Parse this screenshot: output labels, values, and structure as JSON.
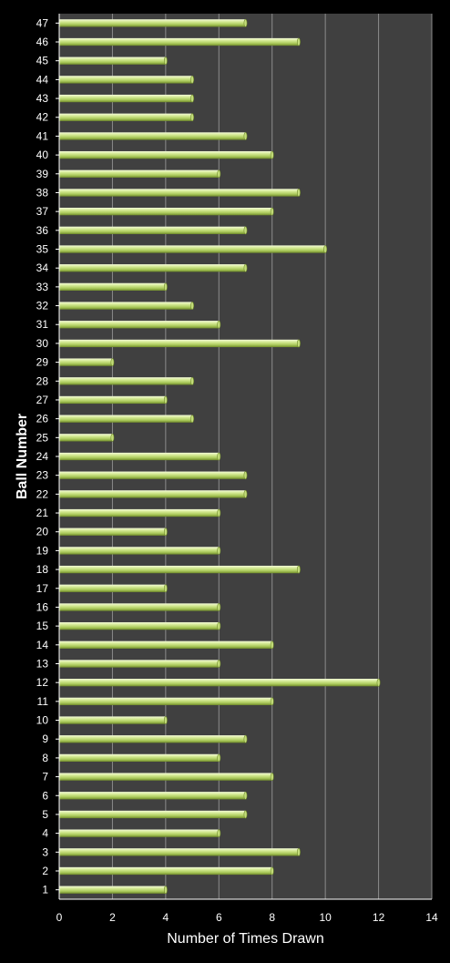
{
  "colors": {
    "background": "#000000",
    "plot_area": "#404040",
    "gridline": "#8c8c8c",
    "bar_fill": "#c3dc7a",
    "bar_highlight": "#e8f5b8",
    "bar_shadow": "#6f8a2a",
    "text": "#ffffff"
  },
  "chart_data": {
    "type": "bar",
    "orientation": "horizontal",
    "xlabel": "Number of Times Drawn",
    "ylabel": "Ball Number",
    "xlim": [
      0,
      14
    ],
    "x_ticks": [
      "0",
      "2",
      "4",
      "6",
      "8",
      "10",
      "12",
      "14"
    ],
    "grid": "vertical",
    "legend": "none",
    "categories": [
      "1",
      "2",
      "3",
      "4",
      "5",
      "6",
      "7",
      "8",
      "9",
      "10",
      "11",
      "12",
      "13",
      "14",
      "15",
      "16",
      "17",
      "18",
      "19",
      "20",
      "21",
      "22",
      "23",
      "24",
      "25",
      "26",
      "27",
      "28",
      "29",
      "30",
      "31",
      "32",
      "33",
      "34",
      "35",
      "36",
      "37",
      "38",
      "39",
      "40",
      "41",
      "42",
      "43",
      "44",
      "45",
      "46",
      "47"
    ],
    "values": [
      4,
      8,
      9,
      6,
      7,
      7,
      8,
      6,
      7,
      4,
      8,
      12,
      6,
      8,
      6,
      6,
      4,
      9,
      6,
      4,
      6,
      7,
      7,
      6,
      2,
      5,
      4,
      5,
      2,
      9,
      6,
      5,
      4,
      7,
      10,
      7,
      8,
      9,
      6,
      8,
      7,
      5,
      5,
      5,
      4,
      9,
      7
    ]
  }
}
